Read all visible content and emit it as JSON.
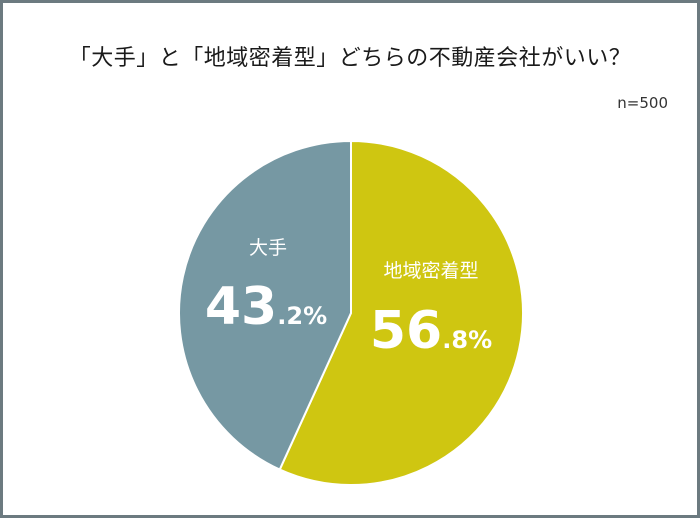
{
  "title": "「大手」と「地域密着型」どちらの不動産会社がいい？",
  "sample_size": "n=500",
  "chart_data": {
    "type": "pie",
    "title": "「大手」と「地域密着型」どちらの不動産会社がいい？",
    "slices": [
      {
        "label": "地域密着型",
        "value": 56.8,
        "int_part": "56",
        "dec_part": ".8%",
        "color": "#cfc611"
      },
      {
        "label": "大手",
        "value": 43.2,
        "int_part": "43",
        "dec_part": ".2%",
        "color": "#7698a3"
      }
    ],
    "start": "12 o'clock",
    "direction": "clockwise"
  }
}
